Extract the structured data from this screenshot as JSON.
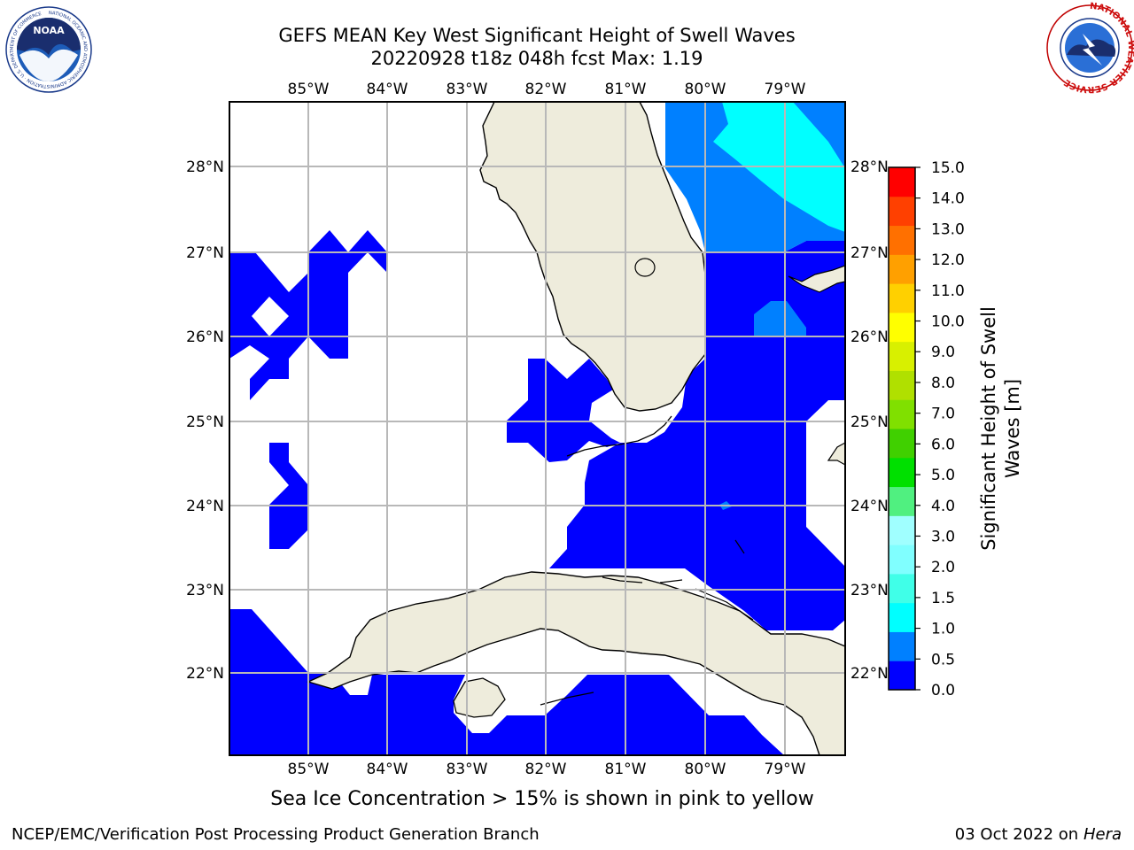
{
  "title": {
    "line1": "GEFS MEAN Key West Significant Height of Swell Waves",
    "line2": "20220928 t18z 048h fcst   Max: 1.19"
  },
  "axes": {
    "lon_labels": [
      "85°W",
      "84°W",
      "83°W",
      "82°W",
      "81°W",
      "80°W",
      "79°W"
    ],
    "lat_labels": [
      "28°N",
      "27°N",
      "26°N",
      "25°N",
      "24°N",
      "23°N",
      "22°N"
    ]
  },
  "colorbar": {
    "label_line1": "Significant Height of Swell",
    "label_line2": "Waves [m]",
    "ticks": [
      "0.0",
      "0.5",
      "1.0",
      "1.5",
      "2.0",
      "3.0",
      "4.0",
      "5.0",
      "6.0",
      "7.0",
      "8.0",
      "9.0",
      "10.0",
      "11.0",
      "12.0",
      "13.0",
      "14.0",
      "15.0"
    ],
    "colors": [
      "#0000ff",
      "#0080ff",
      "#00ffff",
      "#40ffe8",
      "#80ffff",
      "#a0ffff",
      "#50f080",
      "#00e000",
      "#40d000",
      "#80e000",
      "#b0e000",
      "#d8f000",
      "#ffff00",
      "#ffd000",
      "#ffa000",
      "#ff7000",
      "#ff4000",
      "#ff0000"
    ]
  },
  "sea_ice_note": "Sea Ice Concentration > 15% is shown in pink to yellow",
  "footer": {
    "left": "NCEP/EMC/Verification Post Processing Product Generation Branch",
    "date": "03 Oct 2022 on",
    "machine": "Hera"
  },
  "logos": {
    "noaa_text": "NOAA",
    "noaa_ring": "NATIONAL OCEANIC AND ATMOSPHERIC ADMINISTRATION · U.S. DEPARTMENT OF COMMERCE",
    "nws_ring": "NATIONAL WEATHER SERVICE"
  },
  "colors": {
    "land": "#eeecdc",
    "grid": "#b8b8b8",
    "swell_low": "#0000ff",
    "swell_mid": "#0080ff",
    "swell_high": "#00ffff"
  }
}
